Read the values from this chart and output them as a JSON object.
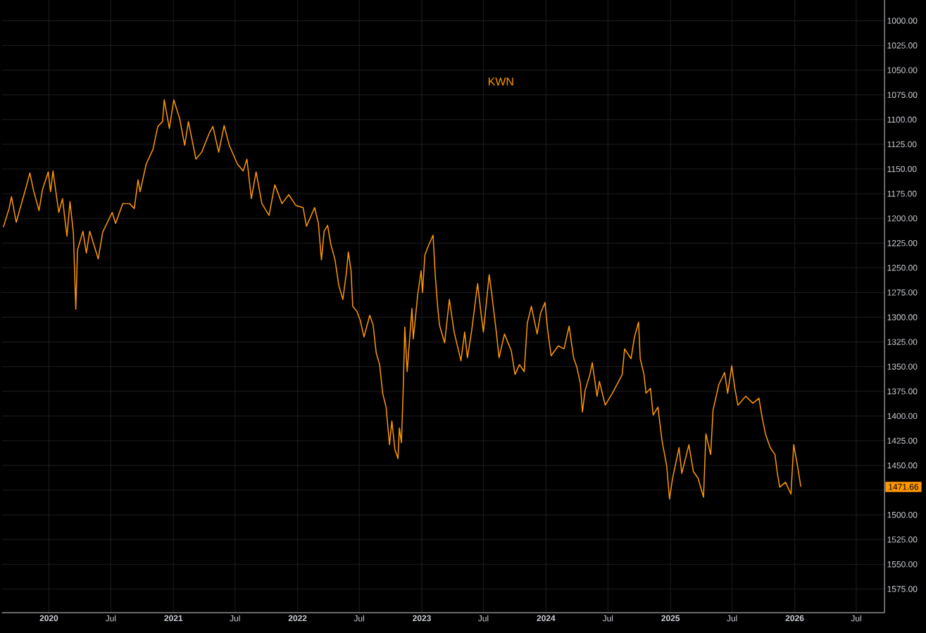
{
  "chart_data": {
    "type": "line",
    "title": "KWN",
    "x": [
      "2019-08-20",
      "2019-09-06",
      "2019-09-13",
      "2019-09-27",
      "2019-10-14",
      "2019-10-24",
      "2019-11-06",
      "2019-11-17",
      "2019-12-03",
      "2019-12-13",
      "2019-12-30",
      "2020-01-06",
      "2020-01-13",
      "2020-01-30",
      "2020-02-10",
      "2020-02-23",
      "2020-03-03",
      "2020-03-13",
      "2020-03-20",
      "2020-03-25",
      "2020-04-10",
      "2020-04-20",
      "2020-04-30",
      "2020-05-25",
      "2020-06-07",
      "2020-06-18",
      "2020-07-05",
      "2020-07-15",
      "2020-08-05",
      "2020-08-25",
      "2020-09-08",
      "2020-09-19",
      "2020-09-25",
      "2020-10-13",
      "2020-11-02",
      "2020-11-16",
      "2020-11-30",
      "2020-12-05",
      "2020-12-20",
      "2021-01-02",
      "2021-01-20",
      "2021-02-03",
      "2021-02-14",
      "2021-03-08",
      "2021-03-25",
      "2021-04-16",
      "2021-04-27",
      "2021-05-14",
      "2021-05-30",
      "2021-06-14",
      "2021-07-08",
      "2021-07-25",
      "2021-08-05",
      "2021-08-18",
      "2021-09-01",
      "2021-09-18",
      "2021-10-09",
      "2021-10-26",
      "2021-11-16",
      "2021-12-06",
      "2021-12-27",
      "2022-01-17",
      "2022-01-27",
      "2022-02-20",
      "2022-03-03",
      "2022-03-12",
      "2022-03-20",
      "2022-03-30",
      "2022-04-09",
      "2022-04-21",
      "2022-05-02",
      "2022-05-14",
      "2022-05-24",
      "2022-05-30",
      "2022-06-07",
      "2022-06-12",
      "2022-06-24",
      "2022-07-04",
      "2022-07-15",
      "2022-08-01",
      "2022-08-11",
      "2022-08-20",
      "2022-08-30",
      "2022-09-08",
      "2022-09-18",
      "2022-09-28",
      "2022-10-05",
      "2022-10-14",
      "2022-10-23",
      "2022-10-27",
      "2022-11-02",
      "2022-11-07",
      "2022-11-12",
      "2022-11-19",
      "2022-12-03",
      "2022-12-07",
      "2022-12-20",
      "2022-12-30",
      "2023-01-03",
      "2023-01-10",
      "2023-01-20",
      "2023-02-03",
      "2023-02-10",
      "2023-02-17",
      "2023-02-22",
      "2023-03-09",
      "2023-03-23",
      "2023-04-06",
      "2023-04-26",
      "2023-05-07",
      "2023-05-15",
      "2023-05-27",
      "2023-06-14",
      "2023-06-24",
      "2023-07-01",
      "2023-07-18",
      "2023-07-25",
      "2023-08-08",
      "2023-08-16",
      "2023-09-01",
      "2023-09-21",
      "2023-10-02",
      "2023-10-15",
      "2023-10-29",
      "2023-11-07",
      "2023-11-19",
      "2023-12-06",
      "2023-12-16",
      "2023-12-29",
      "2024-01-06",
      "2024-01-16",
      "2024-02-06",
      "2024-02-23",
      "2024-03-09",
      "2024-03-22",
      "2024-04-01",
      "2024-04-11",
      "2024-04-17",
      "2024-04-25",
      "2024-05-09",
      "2024-05-16",
      "2024-05-30",
      "2024-06-06",
      "2024-06-23",
      "2024-07-14",
      "2024-08-12",
      "2024-08-19",
      "2024-09-07",
      "2024-09-17",
      "2024-09-29",
      "2024-10-04",
      "2024-10-15",
      "2024-10-21",
      "2024-11-03",
      "2024-11-11",
      "2024-11-25",
      "2024-12-07",
      "2024-12-21",
      "2024-12-29",
      "2025-01-07",
      "2025-01-26",
      "2025-02-03",
      "2025-02-24",
      "2025-03-09",
      "2025-03-23",
      "2025-04-08",
      "2025-04-15",
      "2025-04-29",
      "2025-05-06",
      "2025-05-23",
      "2025-06-09",
      "2025-06-18",
      "2025-06-30",
      "2025-07-09",
      "2025-07-18",
      "2025-08-10",
      "2025-08-31",
      "2025-09-18",
      "2025-09-27",
      "2025-10-07",
      "2025-10-21",
      "2025-11-04",
      "2025-11-11",
      "2025-11-18",
      "2025-12-05",
      "2025-12-21",
      "2025-12-29",
      "2026-01-08",
      "2026-01-19"
    ],
    "series": [
      {
        "color": "#ff9800",
        "values": [
          1209,
          1190,
          1178,
          1204,
          1183,
          1171,
          1154,
          1172,
          1192,
          1171,
          1153,
          1173,
          1152,
          1194,
          1180,
          1218,
          1183,
          1215,
          1292,
          1232,
          1213,
          1235,
          1213,
          1241,
          1214,
          1206,
          1194,
          1205,
          1185,
          1185,
          1190,
          1161,
          1173,
          1145,
          1130,
          1107,
          1102,
          1080,
          1109,
          1080,
          1100,
          1126,
          1102,
          1140,
          1133,
          1114,
          1107,
          1133,
          1106,
          1126,
          1145,
          1152,
          1140,
          1180,
          1153,
          1185,
          1197,
          1166,
          1185,
          1176,
          1187,
          1189,
          1208,
          1189,
          1205,
          1242,
          1213,
          1207,
          1227,
          1242,
          1268,
          1282,
          1256,
          1234,
          1253,
          1289,
          1294,
          1303,
          1320,
          1298,
          1308,
          1336,
          1348,
          1377,
          1391,
          1429,
          1405,
          1434,
          1443,
          1412,
          1427,
          1377,
          1310,
          1355,
          1291,
          1322,
          1277,
          1253,
          1275,
          1237,
          1228,
          1217,
          1260,
          1291,
          1308,
          1326,
          1282,
          1315,
          1344,
          1315,
          1341,
          1315,
          1266,
          1296,
          1315,
          1257,
          1275,
          1315,
          1341,
          1317,
          1334,
          1358,
          1348,
          1355,
          1306,
          1289,
          1317,
          1296,
          1285,
          1313,
          1339,
          1329,
          1332,
          1309,
          1341,
          1351,
          1367,
          1396,
          1374,
          1358,
          1346,
          1380,
          1365,
          1389,
          1377,
          1358,
          1332,
          1342,
          1320,
          1305,
          1342,
          1358,
          1377,
          1372,
          1399,
          1391,
          1425,
          1451,
          1484,
          1463,
          1432,
          1458,
          1429,
          1456,
          1463,
          1482,
          1418,
          1439,
          1394,
          1368,
          1356,
          1377,
          1349,
          1372,
          1389,
          1380,
          1387,
          1382,
          1401,
          1418,
          1432,
          1439,
          1458,
          1472,
          1467,
          1479,
          1429,
          1448,
          1471.66
        ]
      }
    ],
    "xlim": [
      "2019-08-16",
      "2026-09-22"
    ],
    "ylim": [
      1599,
      979
    ],
    "xticks": [
      {
        "value": "2020",
        "label": "2020"
      },
      {
        "value": "2020-07",
        "label": "Jul"
      },
      {
        "value": "2021",
        "label": "2021"
      },
      {
        "value": "2021-07",
        "label": "Jul"
      },
      {
        "value": "2022",
        "label": "2022"
      },
      {
        "value": "2022-07",
        "label": "Jul"
      },
      {
        "value": "2023",
        "label": "2023"
      },
      {
        "value": "2023-07",
        "label": "Jul"
      },
      {
        "value": "2024",
        "label": "2024"
      },
      {
        "value": "2024-07",
        "label": "Jul"
      },
      {
        "value": "2025",
        "label": "2025"
      },
      {
        "value": "2025-07",
        "label": "Jul"
      },
      {
        "value": "2026",
        "label": "2026"
      },
      {
        "value": "2026-07",
        "label": "Jul"
      }
    ],
    "yticks": [
      {
        "value": 1000,
        "label": "1000.00"
      },
      {
        "value": 1025,
        "label": "1025.00"
      },
      {
        "value": 1050,
        "label": "1050.00"
      },
      {
        "value": 1075,
        "label": "1075.00"
      },
      {
        "value": 1100,
        "label": "1100.00"
      },
      {
        "value": 1125,
        "label": "1125.00"
      },
      {
        "value": 1150,
        "label": "1150.00"
      },
      {
        "value": 1175,
        "label": "1175.00"
      },
      {
        "value": 1200,
        "label": "1200.00"
      },
      {
        "value": 1225,
        "label": "1225.00"
      },
      {
        "value": 1250,
        "label": "1250.00"
      },
      {
        "value": 1275,
        "label": "1275.00"
      },
      {
        "value": 1300,
        "label": "1300.00"
      },
      {
        "value": 1325,
        "label": "1325.00"
      },
      {
        "value": 1350,
        "label": "1350.00"
      },
      {
        "value": 1375,
        "label": "1375.00"
      },
      {
        "value": 1400,
        "label": "1400.00"
      },
      {
        "value": 1425,
        "label": "1425.00"
      },
      {
        "value": 1450,
        "label": "1450.00"
      },
      {
        "value": 1475,
        "label": null
      },
      {
        "value": 1500,
        "label": "1500.00"
      },
      {
        "value": 1525,
        "label": "1525.00"
      },
      {
        "value": 1550,
        "label": "1550.00"
      },
      {
        "value": 1575,
        "label": "1575.00"
      }
    ],
    "grid": true,
    "annotations": [
      "1471.66"
    ]
  }
}
